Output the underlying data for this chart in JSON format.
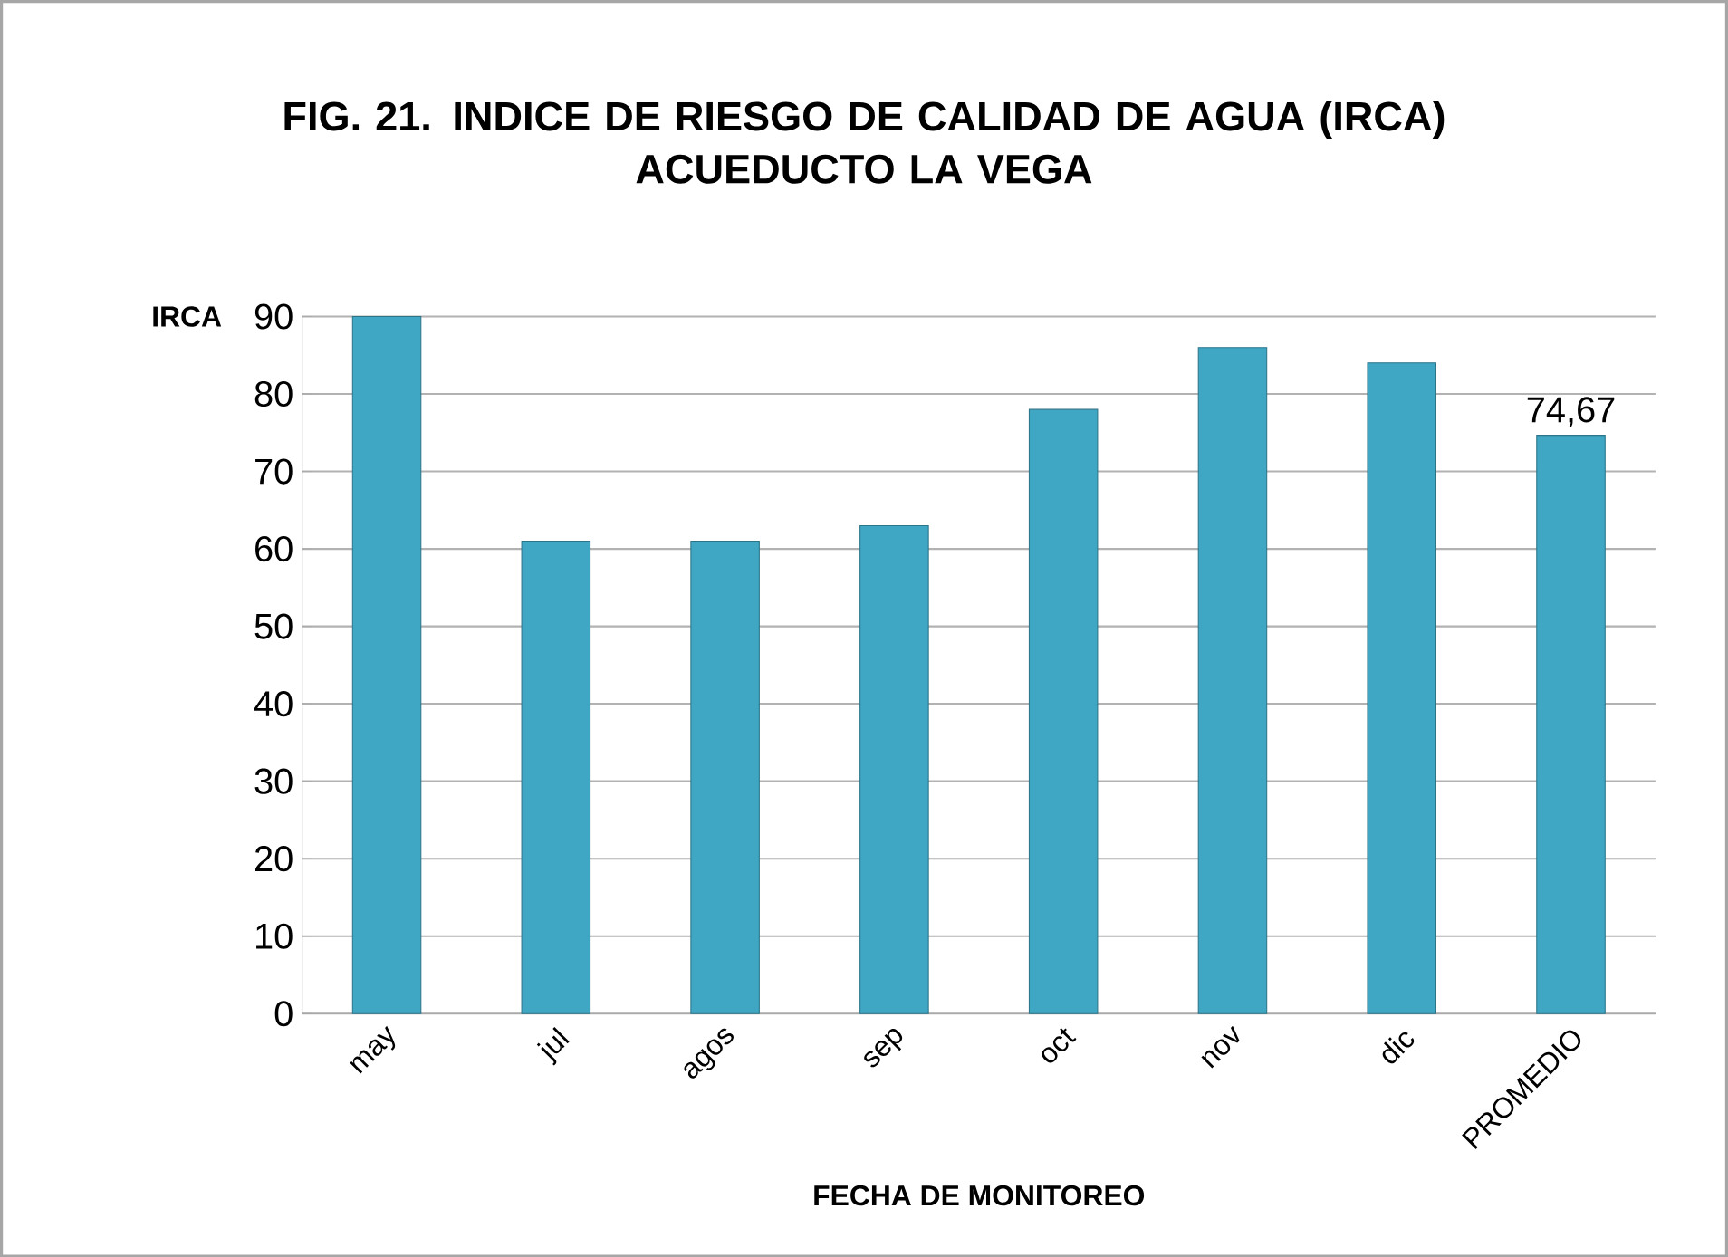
{
  "chart_data": {
    "type": "bar",
    "title": "FIG. 21. INDICE DE RIESGO DE CALIDAD DE AGUA (IRCA)\nACUEDUCTO LA VEGA",
    "xlabel": "FECHA DE MONITOREO",
    "ylabel": "IRCA",
    "categories": [
      "may",
      "jul",
      "agos",
      "sep",
      "oct",
      "nov",
      "dic",
      "PROMEDIO"
    ],
    "values": [
      90,
      61,
      61,
      63,
      78,
      86,
      84,
      74.67
    ],
    "value_labels": [
      null,
      null,
      null,
      null,
      null,
      null,
      null,
      "74,67"
    ],
    "color": "#3fa7c4",
    "ylim": [
      0,
      90
    ],
    "yticks": [
      0,
      10,
      20,
      30,
      40,
      50,
      60,
      70,
      80,
      90
    ],
    "grid": "y"
  }
}
